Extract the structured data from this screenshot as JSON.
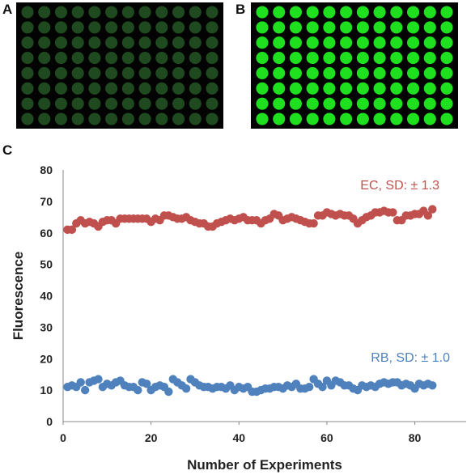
{
  "panels": {
    "a_label": "A",
    "b_label": "B",
    "c_label": "C"
  },
  "plate_a": {
    "rows": 8,
    "cols": 12,
    "spot_color": "#1f4a1f",
    "background": "#020302"
  },
  "plate_b": {
    "rows": 8,
    "cols": 12,
    "spot_color": "#1fe01f",
    "background": "#020302"
  },
  "chart_data": {
    "type": "scatter",
    "xlabel": "Number of Experiments",
    "ylabel": "Fluorescence",
    "xlim": [
      0,
      88
    ],
    "ylim": [
      0,
      80
    ],
    "xticks": [
      0,
      20,
      40,
      60,
      80
    ],
    "yticks": [
      0,
      10,
      20,
      30,
      40,
      50,
      60,
      70,
      80
    ],
    "grid": false,
    "series": [
      {
        "name": "EC, SD: ± 1.3",
        "color": "#c0504d",
        "x": [
          1,
          2,
          3,
          4,
          5,
          6,
          7,
          8,
          9,
          10,
          11,
          12,
          13,
          14,
          15,
          16,
          17,
          18,
          19,
          20,
          21,
          22,
          23,
          24,
          25,
          26,
          27,
          28,
          29,
          30,
          31,
          32,
          33,
          34,
          35,
          36,
          37,
          38,
          39,
          40,
          41,
          42,
          43,
          44,
          45,
          46,
          47,
          48,
          49,
          50,
          51,
          52,
          53,
          54,
          55,
          56,
          57,
          58,
          59,
          60,
          61,
          62,
          63,
          64,
          65,
          66,
          67,
          68,
          69,
          70,
          71,
          72,
          73,
          74,
          75,
          76,
          77,
          78,
          79,
          80,
          81,
          82,
          83,
          84
        ],
        "y": [
          61.0,
          61.0,
          63.0,
          64.0,
          63.0,
          63.5,
          63.0,
          62.0,
          63.5,
          64.0,
          64.0,
          63.0,
          64.5,
          64.5,
          64.5,
          64.5,
          64.5,
          64.5,
          64.5,
          63.5,
          64.5,
          64.0,
          65.5,
          65.5,
          65.0,
          64.5,
          64.5,
          65.0,
          64.0,
          63.5,
          63.0,
          63.0,
          62.0,
          62.0,
          63.0,
          63.5,
          64.0,
          64.5,
          64.0,
          64.5,
          65.0,
          64.0,
          64.0,
          64.0,
          63.0,
          64.0,
          64.5,
          66.0,
          65.5,
          64.0,
          64.5,
          65.0,
          64.5,
          64.0,
          63.5,
          63.0,
          63.0,
          65.5,
          65.5,
          66.5,
          66.0,
          65.5,
          66.0,
          65.5,
          65.5,
          64.5,
          63.0,
          64.0,
          65.0,
          65.5,
          66.5,
          66.5,
          67.0,
          66.5,
          66.5,
          64.0,
          64.0,
          65.5,
          65.5,
          66.0,
          66.0,
          67.0,
          65.5,
          67.5
        ]
      },
      {
        "name": "RB, SD: ± 1.0",
        "color": "#4f81bd",
        "x": [
          1,
          2,
          3,
          4,
          5,
          6,
          7,
          8,
          9,
          10,
          11,
          12,
          13,
          14,
          15,
          16,
          17,
          18,
          19,
          20,
          21,
          22,
          23,
          24,
          25,
          26,
          27,
          28,
          29,
          30,
          31,
          32,
          33,
          34,
          35,
          36,
          37,
          38,
          39,
          40,
          41,
          42,
          43,
          44,
          45,
          46,
          47,
          48,
          49,
          50,
          51,
          52,
          53,
          54,
          55,
          56,
          57,
          58,
          59,
          60,
          61,
          62,
          63,
          64,
          65,
          66,
          67,
          68,
          69,
          70,
          71,
          72,
          73,
          74,
          75,
          76,
          77,
          78,
          79,
          80,
          81,
          82,
          83,
          84
        ],
        "y": [
          11.0,
          11.5,
          11.0,
          12.5,
          10.0,
          12.5,
          13.0,
          13.5,
          11.0,
          12.0,
          11.5,
          12.5,
          13.0,
          11.5,
          11.0,
          11.0,
          10.0,
          12.5,
          12.0,
          10.0,
          11.0,
          11.5,
          11.0,
          9.5,
          13.5,
          12.5,
          11.5,
          10.5,
          13.5,
          12.5,
          11.5,
          11.0,
          11.0,
          10.5,
          11.0,
          11.0,
          10.5,
          11.5,
          10.0,
          11.0,
          10.5,
          11.0,
          9.5,
          9.5,
          10.0,
          10.5,
          10.5,
          11.0,
          11.0,
          10.5,
          11.5,
          11.0,
          12.0,
          10.5,
          10.5,
          11.0,
          13.5,
          12.0,
          11.0,
          13.0,
          11.5,
          13.0,
          12.5,
          11.5,
          11.5,
          10.5,
          10.0,
          11.5,
          11.0,
          11.5,
          11.0,
          12.0,
          12.5,
          12.0,
          12.5,
          12.5,
          11.5,
          12.0,
          11.5,
          10.5,
          12.0,
          11.5,
          12.0,
          11.5
        ]
      }
    ],
    "annotations": [
      {
        "text": "EC, SD: ± 1.3",
        "color": "#c0504d"
      },
      {
        "text": "RB, SD: ± 1.0",
        "color": "#4f81bd"
      }
    ]
  }
}
